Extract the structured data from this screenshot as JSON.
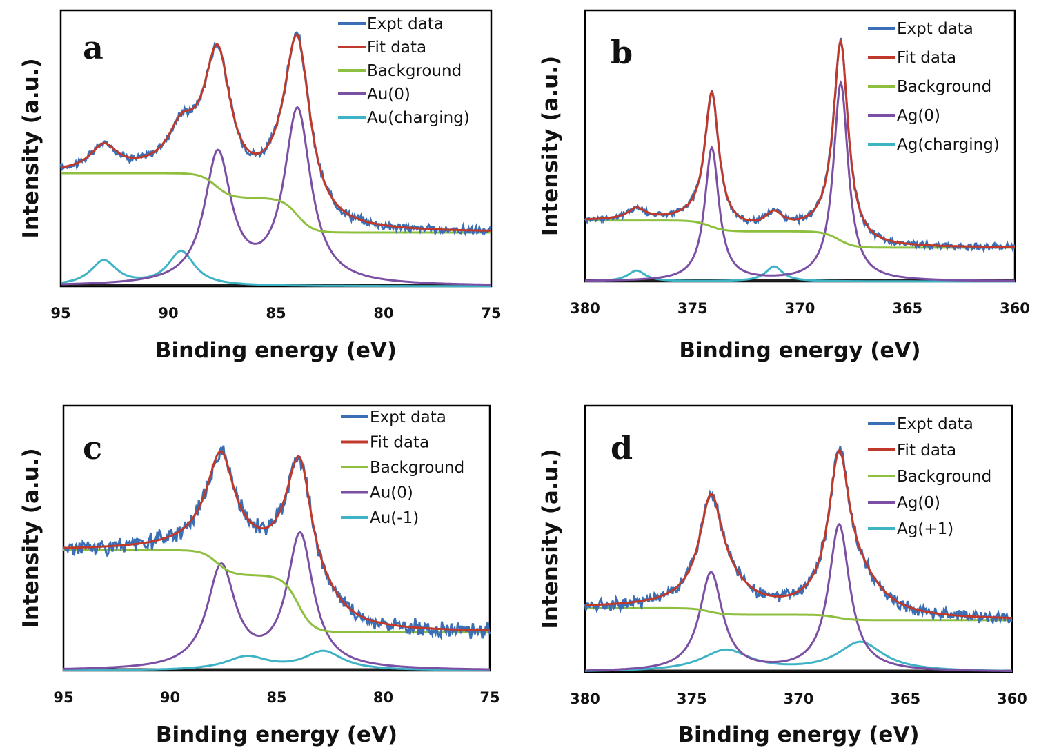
{
  "colors": {
    "expt": "#3a6fb5",
    "fit": "#c0392b",
    "background": "#8fbf3f",
    "component_a": "#7b4fa3",
    "component_b": "#3fb3c6"
  },
  "chart_data": [
    {
      "id": "a",
      "type": "line",
      "panel_label": "a",
      "xlabel": "Binding energy (eV)",
      "ylabel": "Intensity (a.u.)",
      "xlim": [
        95,
        75
      ],
      "x_reversed": true,
      "xticks": [
        95,
        90,
        85,
        80,
        75
      ],
      "ylim": [
        0,
        1.0
      ],
      "legend_position": "top-right",
      "legend": [
        "Expt data",
        "Fit data",
        "Background",
        "Au(0)",
        "Au(charging)"
      ],
      "background": {
        "high": 0.41,
        "mid": 0.32,
        "low": 0.195,
        "step1": 87.8,
        "step2": 84.0
      },
      "components": [
        {
          "name": "Au(0)",
          "peaks": [
            {
              "center": 87.7,
              "height": 0.47,
              "width": 0.75
            },
            {
              "center": 84.0,
              "height": 0.63,
              "width": 0.75
            }
          ]
        },
        {
          "name": "Au(charging)",
          "peaks": [
            {
              "center": 93.0,
              "height": 0.09,
              "width": 0.75
            },
            {
              "center": 89.4,
              "height": 0.125,
              "width": 0.75
            }
          ]
        }
      ],
      "noise": 0.012
    },
    {
      "id": "b",
      "type": "line",
      "panel_label": "b",
      "xlabel": "Binding energy (eV)",
      "ylabel": "Intensity (a.u.)",
      "xlim": [
        380,
        360
      ],
      "x_reversed": true,
      "xticks": [
        380,
        375,
        370,
        365,
        360
      ],
      "ylim": [
        0,
        1.0
      ],
      "legend_position": "top-right",
      "legend": [
        "Expt data",
        "Fit data",
        "Background",
        "Ag(0)",
        "Ag(charging)"
      ],
      "background": {
        "high": 0.225,
        "mid": 0.185,
        "low": 0.125,
        "step1": 374.2,
        "step2": 368.2
      },
      "components": [
        {
          "name": "Ag(0)",
          "peaks": [
            {
              "center": 374.1,
              "height": 0.49,
              "width": 0.4
            },
            {
              "center": 368.1,
              "height": 0.73,
              "width": 0.42
            }
          ]
        },
        {
          "name": "Ag(charging)",
          "peaks": [
            {
              "center": 377.6,
              "height": 0.04,
              "width": 0.5
            },
            {
              "center": 371.2,
              "height": 0.055,
              "width": 0.5
            }
          ]
        }
      ],
      "noise": 0.01
    },
    {
      "id": "c",
      "type": "line",
      "panel_label": "c",
      "xlabel": "Binding energy (eV)",
      "ylabel": "Intensity (a.u.)",
      "xlim": [
        95,
        75
      ],
      "x_reversed": true,
      "xticks": [
        95,
        90,
        85,
        80,
        75
      ],
      "ylim": [
        0,
        1.0
      ],
      "legend_position": "top-right",
      "legend": [
        "Expt data",
        "Fit data",
        "Background",
        "Au(0)",
        "Au(-1)"
      ],
      "background": {
        "high": 0.455,
        "mid": 0.36,
        "low": 0.145,
        "step1": 87.8,
        "step2": 84.0
      },
      "components": [
        {
          "name": "Au(0)",
          "peaks": [
            {
              "center": 87.6,
              "height": 0.385,
              "width": 0.8
            },
            {
              "center": 83.9,
              "height": 0.505,
              "width": 0.75
            }
          ]
        },
        {
          "name": "Au(-1)",
          "peaks": [
            {
              "center": 86.4,
              "height": 0.05,
              "width": 1.2
            },
            {
              "center": 82.8,
              "height": 0.07,
              "width": 1.1
            }
          ]
        }
      ],
      "noise": 0.025
    },
    {
      "id": "d",
      "type": "line",
      "panel_label": "d",
      "xlabel": "Binding energy (eV)",
      "ylabel": "Intensity (a.u.)",
      "xlim": [
        380,
        360
      ],
      "x_reversed": true,
      "xticks": [
        380,
        375,
        370,
        365,
        360
      ],
      "ylim": [
        0,
        1.0
      ],
      "legend_position": "top-right",
      "legend": [
        "Expt data",
        "Fit data",
        "Background",
        "Ag(0)",
        "Ag(+1)"
      ],
      "background": {
        "high": 0.24,
        "mid": 0.215,
        "low": 0.195,
        "step1": 374.2,
        "step2": 368.2
      },
      "components": [
        {
          "name": "Ag(0)",
          "peaks": [
            {
              "center": 374.1,
              "height": 0.37,
              "width": 0.65
            },
            {
              "center": 368.1,
              "height": 0.55,
              "width": 0.6
            }
          ]
        },
        {
          "name": "Ag(+1)",
          "peaks": [
            {
              "center": 373.4,
              "height": 0.08,
              "width": 1.4
            },
            {
              "center": 367.1,
              "height": 0.11,
              "width": 1.3
            }
          ]
        }
      ],
      "noise": 0.018
    }
  ]
}
